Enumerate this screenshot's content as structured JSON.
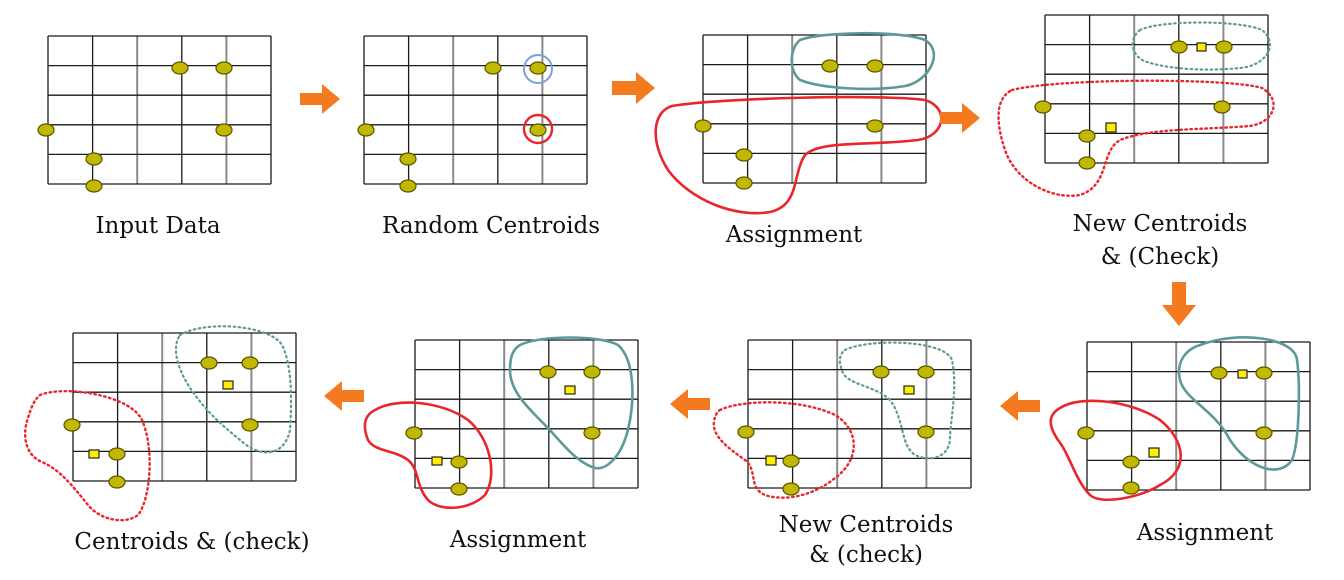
{
  "colors": {
    "grid": "#1a1a1a",
    "grid_major": "#8a8a8a",
    "point_fill": "#c2b800",
    "point_stroke": "#5a5400",
    "centroid_fill": "#ffee00",
    "centroid_stroke": "#222222",
    "cluster_red": "#e8262b",
    "cluster_teal": "#5c9a9a",
    "init_blue": "#7aa0e0",
    "arrow": "#f47a20"
  },
  "steps": [
    {
      "name": "step-input-data",
      "caption_lines": [
        "Input Data"
      ],
      "centroids": [],
      "initial_markers": [],
      "clusters": []
    },
    {
      "name": "step-random-centroids",
      "caption_lines": [
        "Random Centroids"
      ],
      "centroids": [],
      "initial_markers": [
        {
          "color": "blue",
          "point": "p4"
        },
        {
          "color": "red",
          "point": "p6"
        }
      ],
      "clusters": []
    },
    {
      "name": "step-assignment-1",
      "caption_lines": [
        "Assignment"
      ],
      "centroids": [],
      "initial_markers": [],
      "clusters": [
        {
          "color": "teal",
          "style": "solid"
        },
        {
          "color": "red",
          "style": "solid"
        }
      ]
    },
    {
      "name": "step-new-centroids-1",
      "caption_lines": [
        "New Centroids",
        "& (Check)"
      ],
      "centroids": [
        "teal",
        "red"
      ],
      "initial_markers": [],
      "clusters": [
        {
          "color": "teal",
          "style": "dotted"
        },
        {
          "color": "red",
          "style": "dotted"
        }
      ]
    },
    {
      "name": "step-assignment-2",
      "caption_lines": [
        "Assignment"
      ],
      "centroids": [
        "teal",
        "red"
      ],
      "initial_markers": [],
      "clusters": [
        {
          "color": "teal",
          "style": "solid"
        },
        {
          "color": "red",
          "style": "solid"
        }
      ]
    },
    {
      "name": "step-new-centroids-2",
      "caption_lines": [
        "New Centroids",
        "& (check)"
      ],
      "centroids": [
        "teal",
        "red"
      ],
      "initial_markers": [],
      "clusters": [
        {
          "color": "teal",
          "style": "dotted"
        },
        {
          "color": "red",
          "style": "dotted"
        }
      ]
    },
    {
      "name": "step-assignment-3",
      "caption_lines": [
        "Assignment"
      ],
      "centroids": [
        "teal",
        "red"
      ],
      "initial_markers": [],
      "clusters": [
        {
          "color": "teal",
          "style": "solid"
        },
        {
          "color": "red",
          "style": "solid"
        }
      ]
    },
    {
      "name": "step-centroids-check",
      "caption_lines": [
        "Centroids & (check)"
      ],
      "centroids": [
        "teal",
        "red"
      ],
      "initial_markers": [],
      "clusters": [
        {
          "color": "teal",
          "style": "dotted"
        },
        {
          "color": "red",
          "style": "dotted"
        }
      ]
    }
  ]
}
